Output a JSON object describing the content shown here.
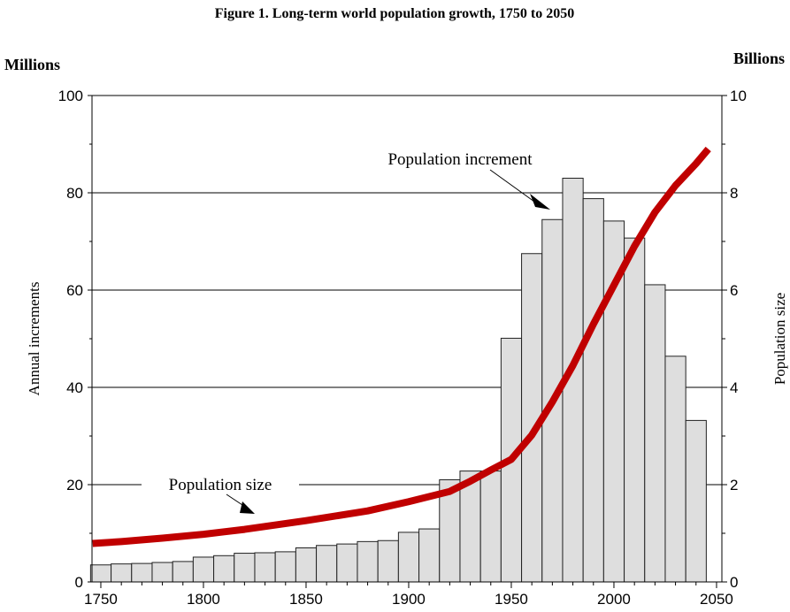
{
  "chart_data": {
    "type": "bar",
    "title": "Figure 1.  Long-term world population growth, 1750 to 2050",
    "left_unit": "Millions",
    "right_unit": "Billions",
    "ylabel": "Annual increments",
    "y2label": "Population size",
    "ylim": [
      0,
      100
    ],
    "y2lim": [
      0,
      10
    ],
    "yticks": [
      "0",
      "20",
      "40",
      "60",
      "80",
      "100"
    ],
    "y2ticks": [
      "0",
      "2",
      "4",
      "6",
      "8",
      "10"
    ],
    "xticks": [
      "1750",
      "1800",
      "1850",
      "1900",
      "1950",
      "2000",
      "2050"
    ],
    "grid": true,
    "colors": {
      "bars": "#dedede",
      "line": "#c00000"
    },
    "annotations": {
      "increment": "Population increment",
      "size": "Population size"
    },
    "series": [
      {
        "name": "Population increment",
        "type": "bar",
        "axis": "left",
        "x": [
          1750,
          1760,
          1770,
          1780,
          1790,
          1800,
          1810,
          1820,
          1830,
          1840,
          1850,
          1860,
          1870,
          1880,
          1890,
          1900,
          1910,
          1920,
          1930,
          1940,
          1950,
          1960,
          1970,
          1980,
          1990,
          2000,
          2010,
          2020,
          2030,
          2040
        ],
        "values": [
          3.5,
          3.7,
          3.8,
          4.0,
          4.2,
          5.1,
          5.4,
          5.9,
          6.0,
          6.2,
          7.0,
          7.5,
          7.8,
          8.3,
          8.5,
          10.2,
          10.9,
          21.0,
          22.8,
          22.8,
          50.1,
          67.5,
          74.5,
          83.0,
          78.8,
          74.2,
          70.7,
          61.1,
          46.4,
          33.2
        ]
      },
      {
        "name": "Population size",
        "type": "line",
        "axis": "right",
        "x": [
          1746,
          1760,
          1780,
          1800,
          1820,
          1850,
          1880,
          1900,
          1920,
          1930,
          1940,
          1950,
          1960,
          1970,
          1980,
          1990,
          2000,
          2010,
          2020,
          2030,
          2040,
          2046
        ],
        "values": [
          0.79,
          0.83,
          0.9,
          0.98,
          1.08,
          1.26,
          1.46,
          1.65,
          1.86,
          2.07,
          2.3,
          2.52,
          3.02,
          3.7,
          4.45,
          5.3,
          6.1,
          6.9,
          7.6,
          8.15,
          8.6,
          8.9
        ]
      }
    ]
  }
}
